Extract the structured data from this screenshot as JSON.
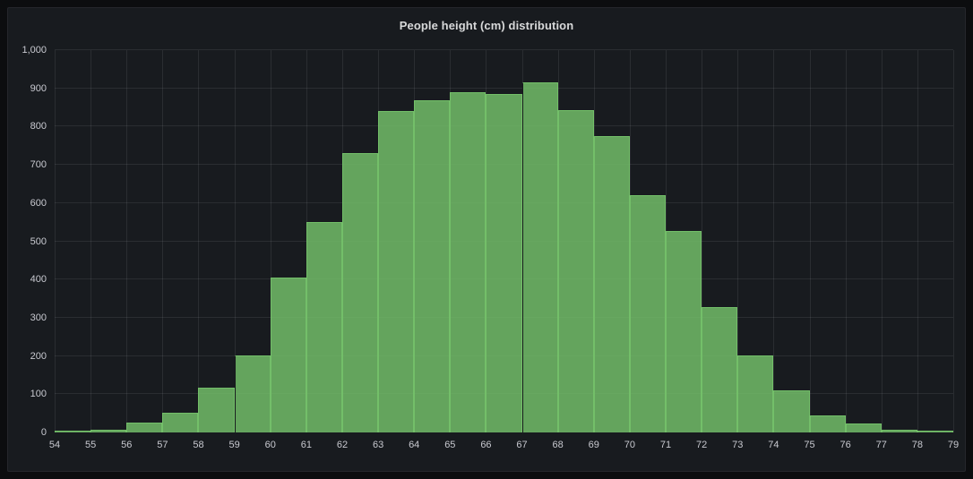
{
  "panel": {
    "title": "People height (cm) distribution"
  },
  "chart_data": {
    "type": "bar",
    "title": "People height (cm) distribution",
    "xlabel": "",
    "ylabel": "",
    "x_ticks": [
      54,
      55,
      56,
      57,
      58,
      59,
      60,
      61,
      62,
      63,
      64,
      65,
      66,
      67,
      68,
      69,
      70,
      71,
      72,
      73,
      74,
      75,
      76,
      77,
      78,
      79
    ],
    "y_ticks": [
      "0",
      "100",
      "200",
      "300",
      "400",
      "500",
      "600",
      "700",
      "800",
      "900",
      "1,000"
    ],
    "xlim": [
      54,
      79
    ],
    "ylim": [
      0,
      1000
    ],
    "grid": true,
    "legend": "none",
    "bucket_size": 1,
    "buckets": [
      {
        "x": 54,
        "count": 4
      },
      {
        "x": 55,
        "count": 8
      },
      {
        "x": 56,
        "count": 25
      },
      {
        "x": 57,
        "count": 52
      },
      {
        "x": 58,
        "count": 118
      },
      {
        "x": 59,
        "count": 202
      },
      {
        "x": 60,
        "count": 405
      },
      {
        "x": 61,
        "count": 550
      },
      {
        "x": 62,
        "count": 730
      },
      {
        "x": 63,
        "count": 840
      },
      {
        "x": 64,
        "count": 868
      },
      {
        "x": 65,
        "count": 890
      },
      {
        "x": 66,
        "count": 885
      },
      {
        "x": 67,
        "count": 915
      },
      {
        "x": 68,
        "count": 842
      },
      {
        "x": 69,
        "count": 775
      },
      {
        "x": 70,
        "count": 620
      },
      {
        "x": 71,
        "count": 528
      },
      {
        "x": 72,
        "count": 328
      },
      {
        "x": 73,
        "count": 202
      },
      {
        "x": 74,
        "count": 110
      },
      {
        "x": 75,
        "count": 45
      },
      {
        "x": 76,
        "count": 23
      },
      {
        "x": 77,
        "count": 8
      },
      {
        "x": 78,
        "count": 4
      }
    ],
    "dark_left_edge_at": [
      59,
      67
    ]
  },
  "colors": {
    "page_bg": "#0c0d0f",
    "panel_bg": "#181b1f",
    "panel_border": "#25262c",
    "title_text": "#d8d9da",
    "axis_text": "#c8c9d0",
    "grid": "rgba(204,204,220,0.10)",
    "bar_stroke": "#73bf69",
    "bar_fill": "rgba(115,191,105,0.84)",
    "dark_edge": "#16181c"
  }
}
